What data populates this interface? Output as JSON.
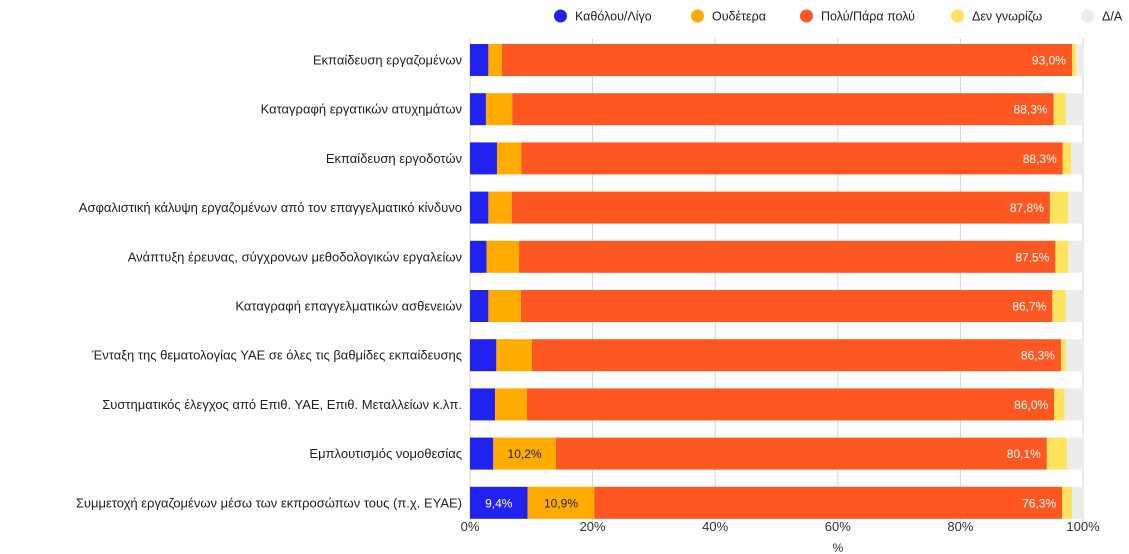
{
  "chart_data": {
    "type": "bar",
    "orientation": "horizontal",
    "stacked": true,
    "categories": [
      "Εκπαίδευση εργαζομένων",
      "Καταγραφή εργατικών ατυχημάτων",
      "Εκπαίδευση εργοδοτών",
      "Ασφαλιστική κάλυψη εργαζομένων από τον επαγγελματικό κίνδυνο",
      "Ανάπτυξη έρευνας, σύγχρονων μεθοδολογικών εργαλείων",
      "Καταγραφή επαγγελματικών ασθενειών",
      "Ένταξη της θεματολογίας ΥΑΕ σε όλες τις βαθμίδες εκπαίδευσης",
      "Συστηματικός έλεγχος από Επιθ. ΥΑΕ, Επιθ. Μεταλλείων κ.λπ.",
      "Εμπλουτισμός νομοθεσίας",
      "Συμμετοχή εργαζομένων μέσω των εκπροσώπων τους (π.χ. ΕΥΑΕ)"
    ],
    "series": [
      {
        "name": "Καθόλου/Λίγο",
        "color": "#2121f0",
        "values": [
          3.0,
          2.6,
          4.4,
          3.0,
          2.7,
          3.0,
          4.3,
          4.1,
          3.8,
          9.4
        ]
      },
      {
        "name": "Ουδέτερα",
        "color": "#ffab00",
        "values": [
          2.2,
          4.3,
          4.0,
          3.8,
          5.3,
          5.3,
          5.8,
          5.2,
          10.2,
          10.9
        ]
      },
      {
        "name": "Πολύ/Πάρα πολύ",
        "color": "#ff5722",
        "values": [
          93.0,
          88.3,
          88.3,
          87.8,
          87.5,
          86.7,
          86.3,
          86.0,
          80.1,
          76.3
        ]
      },
      {
        "name": "Δεν γνωρίζω",
        "color": "#fee35c",
        "values": [
          0.7,
          2.0,
          1.4,
          3.0,
          2.1,
          2.2,
          0.8,
          1.7,
          3.3,
          1.6
        ]
      },
      {
        "name": "Δ/Α",
        "color": "#ececec",
        "values": [
          1.1,
          2.8,
          1.9,
          2.4,
          2.4,
          2.8,
          2.8,
          3.0,
          2.6,
          1.8
        ]
      }
    ],
    "data_labels": [
      {
        "category": 0,
        "series": 2,
        "text": "93,0%"
      },
      {
        "category": 1,
        "series": 2,
        "text": "88,3%"
      },
      {
        "category": 2,
        "series": 2,
        "text": "88,3%"
      },
      {
        "category": 3,
        "series": 2,
        "text": "87,8%"
      },
      {
        "category": 4,
        "series": 2,
        "text": "87,5%"
      },
      {
        "category": 5,
        "series": 2,
        "text": "86,7%"
      },
      {
        "category": 6,
        "series": 2,
        "text": "86,3%"
      },
      {
        "category": 7,
        "series": 2,
        "text": "86,0%"
      },
      {
        "category": 8,
        "series": 1,
        "text": "10,2%"
      },
      {
        "category": 8,
        "series": 2,
        "text": "80,1%"
      },
      {
        "category": 9,
        "series": 0,
        "text": "9,4%"
      },
      {
        "category": 9,
        "series": 1,
        "text": "10,9%"
      },
      {
        "category": 9,
        "series": 2,
        "text": "76,3%"
      }
    ],
    "xlim": [
      0,
      100
    ],
    "xticks": [
      0,
      20,
      40,
      60,
      80,
      100
    ],
    "xtick_labels": [
      "0%",
      "20%",
      "40%",
      "60%",
      "80%",
      "100%"
    ],
    "xlabel": "%",
    "ylabel": "",
    "grid": true,
    "legend_position": "top-right"
  }
}
